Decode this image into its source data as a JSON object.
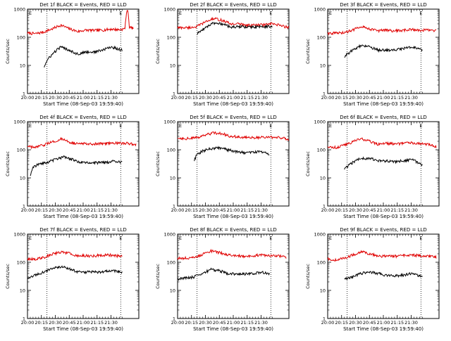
{
  "chart_data": [
    {
      "type": "line",
      "title": "Det 1f BLACK = Events, RED = LLD",
      "ylabel": "Counts/sec",
      "xlabel": "Start Time (08-Sep-03 19:59:40)",
      "x_ticks": [
        "20:00",
        "20:15",
        "20:30",
        "20:45",
        "21:00",
        "21:15",
        "21:30"
      ],
      "y_ticks": [
        "1",
        "10",
        "100",
        "1000"
      ],
      "ylim": [
        1,
        1000
      ],
      "xlim_min": [
        0,
        40
      ],
      "markers": [
        {
          "label": "E",
          "x_min": 0.5
        },
        {
          "label": "E",
          "x_min": 33
        }
      ],
      "dotted_x_min": [
        7,
        33.5
      ],
      "series": [
        {
          "name": "LLD",
          "color": "#e00000",
          "x_min": [
            0,
            3,
            6,
            9,
            12,
            15,
            18,
            21,
            24,
            27,
            30,
            33,
            35,
            36,
            36.5,
            37,
            38
          ],
          "values": [
            140,
            135,
            155,
            200,
            270,
            200,
            160,
            180,
            175,
            180,
            195,
            185,
            200,
            1000,
            240,
            220,
            210
          ]
        },
        {
          "name": "Events",
          "color": "#000000",
          "x_min": [
            6,
            9,
            12,
            15,
            18,
            21,
            24,
            27,
            30,
            34
          ],
          "values": [
            9,
            25,
            45,
            35,
            25,
            30,
            30,
            35,
            45,
            35
          ]
        }
      ]
    },
    {
      "type": "line",
      "title": "Det 2f BLACK = Events, RED = LLD",
      "ylabel": "Counts/sec",
      "xlabel": "Start Time (08-Sep-03 19:59:40)",
      "x_ticks": [
        "20:00",
        "20:15",
        "20:30",
        "20:45",
        "21:00",
        "21:15",
        "21:30"
      ],
      "y_ticks": [
        "1",
        "10",
        "100",
        "1000"
      ],
      "ylim": [
        1,
        1000
      ],
      "xlim_min": [
        0,
        40
      ],
      "markers": [
        {
          "label": "E",
          "x_min": 0.5
        },
        {
          "label": "E",
          "x_min": 33
        }
      ],
      "dotted_x_min": [
        7,
        33.5
      ],
      "series": [
        {
          "name": "LLD",
          "color": "#e00000",
          "x_min": [
            0,
            4,
            7,
            10,
            13,
            16,
            19,
            22,
            25,
            28,
            31,
            34,
            37,
            40
          ],
          "values": [
            220,
            220,
            240,
            350,
            460,
            400,
            300,
            300,
            270,
            270,
            280,
            300,
            260,
            220
          ]
        },
        {
          "name": "Events",
          "color": "#000000",
          "x_min": [
            7,
            10,
            13,
            16,
            19,
            22,
            25,
            28,
            31,
            34
          ],
          "values": [
            130,
            220,
            320,
            300,
            230,
            240,
            230,
            230,
            240,
            240
          ]
        }
      ]
    },
    {
      "type": "line",
      "title": "Det 3f BLACK = Events, RED = LLD",
      "ylabel": "Counts/sec",
      "xlabel": "Start Time (08-Sep-03 19:59:40)",
      "x_ticks": [
        "20:00",
        "20:15",
        "20:30",
        "20:45",
        "21:00",
        "21:15",
        "21:30"
      ],
      "y_ticks": [
        "1",
        "10",
        "100",
        "1000"
      ],
      "ylim": [
        1,
        1000
      ],
      "xlim_min": [
        0,
        40
      ],
      "markers": [
        {
          "label": "E",
          "x_min": 0.5
        },
        {
          "label": "E",
          "x_min": 33
        }
      ],
      "dotted_x_min": [
        7,
        33.5
      ],
      "series": [
        {
          "name": "LLD",
          "color": "#e00000",
          "x_min": [
            0,
            3,
            6,
            9,
            12,
            15,
            18,
            21,
            24,
            27,
            30,
            33,
            36,
            39
          ],
          "values": [
            140,
            140,
            145,
            180,
            250,
            200,
            170,
            180,
            170,
            175,
            190,
            180,
            180,
            170
          ]
        },
        {
          "name": "Events",
          "color": "#000000",
          "x_min": [
            6,
            9,
            12,
            15,
            18,
            21,
            24,
            27,
            30,
            34
          ],
          "values": [
            20,
            35,
            50,
            45,
            35,
            35,
            35,
            40,
            45,
            35
          ]
        }
      ]
    },
    {
      "type": "line",
      "title": "Det 4f BLACK = Events, RED = LLD",
      "ylabel": "Counts/sec",
      "xlabel": "Start Time (08-Sep-03 19:59:40)",
      "x_ticks": [
        "20:00",
        "20:15",
        "20:30",
        "20:45",
        "21:00",
        "21:15",
        "21:30"
      ],
      "y_ticks": [
        "1",
        "10",
        "100",
        "1000"
      ],
      "ylim": [
        1,
        1000
      ],
      "xlim_min": [
        0,
        40
      ],
      "markers": [
        {
          "label": "E",
          "x_min": 0.5
        },
        {
          "label": "E",
          "x_min": 33
        }
      ],
      "dotted_x_min": [
        7,
        33.5
      ],
      "series": [
        {
          "name": "LLD",
          "color": "#e00000",
          "x_min": [
            0,
            3,
            6,
            9,
            12,
            15,
            18,
            21,
            24,
            27,
            30,
            33,
            36,
            39
          ],
          "values": [
            130,
            120,
            150,
            190,
            240,
            190,
            160,
            170,
            160,
            165,
            180,
            170,
            170,
            150
          ]
        },
        {
          "name": "Events",
          "color": "#000000",
          "x_min": [
            1,
            2,
            4,
            7,
            10,
            13,
            16,
            19,
            22,
            25,
            28,
            31,
            34
          ],
          "values": [
            12,
            25,
            30,
            35,
            45,
            55,
            45,
            35,
            35,
            35,
            35,
            40,
            35
          ]
        }
      ]
    },
    {
      "type": "line",
      "title": "Det 5f BLACK = Events, RED = LLD",
      "ylabel": "Counts/sec",
      "xlabel": "Start Time (08-Sep-03 19:59:40)",
      "x_ticks": [
        "20:00",
        "20:15",
        "20:30",
        "20:45",
        "21:00",
        "21:15",
        "21:30"
      ],
      "y_ticks": [
        "1",
        "10",
        "100",
        "1000"
      ],
      "ylim": [
        1,
        1000
      ],
      "xlim_min": [
        0,
        40
      ],
      "markers": [
        {
          "label": "E",
          "x_min": 0.5
        },
        {
          "label": "E",
          "x_min": 33
        }
      ],
      "dotted_x_min": [
        7,
        33.5
      ],
      "series": [
        {
          "name": "LLD",
          "color": "#e00000",
          "x_min": [
            0,
            4,
            7,
            10,
            13,
            16,
            19,
            22,
            25,
            28,
            31,
            34,
            37,
            40
          ],
          "values": [
            260,
            250,
            270,
            330,
            400,
            370,
            300,
            290,
            270,
            270,
            280,
            280,
            270,
            240
          ]
        },
        {
          "name": "Events",
          "color": "#000000",
          "x_min": [
            6,
            7,
            9,
            12,
            15,
            18,
            21,
            24,
            27,
            30,
            33
          ],
          "values": [
            40,
            70,
            90,
            110,
            120,
            100,
            85,
            80,
            80,
            85,
            70
          ]
        }
      ]
    },
    {
      "type": "line",
      "title": "Det 6f BLACK = Events, RED = LLD",
      "ylabel": "Counts/sec",
      "xlabel": "Start Time (08-Sep-03 19:59:40)",
      "x_ticks": [
        "20:00",
        "20:15",
        "20:30",
        "20:45",
        "21:00",
        "21:15",
        "21:30"
      ],
      "y_ticks": [
        "1",
        "10",
        "100",
        "1000"
      ],
      "ylim": [
        1,
        1000
      ],
      "xlim_min": [
        0,
        40
      ],
      "markers": [
        {
          "label": "E",
          "x_min": 0.5
        },
        {
          "label": "E",
          "x_min": 33
        }
      ],
      "dotted_x_min": [
        7,
        33.5
      ],
      "series": [
        {
          "name": "LLD",
          "color": "#e00000",
          "x_min": [
            0,
            3,
            6,
            9,
            12,
            15,
            18,
            21,
            24,
            27,
            30,
            33,
            36,
            39
          ],
          "values": [
            130,
            120,
            150,
            190,
            250,
            200,
            160,
            170,
            160,
            170,
            180,
            170,
            160,
            130
          ]
        },
        {
          "name": "Events",
          "color": "#000000",
          "x_min": [
            6,
            9,
            12,
            15,
            18,
            21,
            24,
            27,
            30,
            34
          ],
          "values": [
            20,
            35,
            50,
            50,
            40,
            40,
            38,
            40,
            45,
            30
          ]
        }
      ]
    },
    {
      "type": "line",
      "title": "Det 7f BLACK = Events, RED = LLD",
      "ylabel": "Counts/sec",
      "xlabel": "Start Time (08-Sep-03 19:59:40)",
      "x_ticks": [
        "20:00",
        "20:15",
        "20:30",
        "20:45",
        "21:00",
        "21:15",
        "21:30"
      ],
      "y_ticks": [
        "1",
        "10",
        "100",
        "1000"
      ],
      "ylim": [
        1,
        1000
      ],
      "xlim_min": [
        0,
        40
      ],
      "markers": [
        {
          "label": "E",
          "x_min": 0.5
        },
        {
          "label": "E",
          "x_min": 33
        }
      ],
      "dotted_x_min": [
        7,
        33.5
      ],
      "series": [
        {
          "name": "LLD",
          "color": "#e00000",
          "x_min": [
            0,
            3,
            6,
            9,
            12,
            15,
            18,
            21,
            24,
            27,
            30,
            34
          ],
          "values": [
            130,
            130,
            150,
            200,
            230,
            210,
            170,
            170,
            170,
            180,
            180,
            160
          ]
        },
        {
          "name": "Events",
          "color": "#000000",
          "x_min": [
            0,
            1,
            3,
            6,
            9,
            12,
            15,
            18,
            21,
            24,
            27,
            30,
            34
          ],
          "values": [
            25,
            30,
            35,
            45,
            60,
            70,
            60,
            45,
            45,
            45,
            45,
            50,
            45
          ]
        }
      ]
    },
    {
      "type": "line",
      "title": "Det 8f BLACK = Events, RED = LLD",
      "ylabel": "Counts/sec",
      "xlabel": "Start Time (08-Sep-03 19:59:40)",
      "x_ticks": [
        "20:00",
        "20:15",
        "20:30",
        "20:45",
        "21:00",
        "21:15",
        "21:30"
      ],
      "y_ticks": [
        "1",
        "10",
        "100",
        "1000"
      ],
      "ylim": [
        1,
        1000
      ],
      "xlim_min": [
        0,
        40
      ],
      "markers": [
        {
          "label": "E",
          "x_min": 0.5
        },
        {
          "label": "E",
          "x_min": 33
        }
      ],
      "dotted_x_min": [
        7,
        33.5
      ],
      "series": [
        {
          "name": "LLD",
          "color": "#e00000",
          "x_min": [
            0,
            3,
            6,
            9,
            12,
            15,
            18,
            21,
            24,
            27,
            30,
            33,
            36,
            39
          ],
          "values": [
            140,
            140,
            150,
            190,
            250,
            220,
            180,
            175,
            165,
            170,
            180,
            170,
            170,
            150
          ]
        },
        {
          "name": "Events",
          "color": "#000000",
          "x_min": [
            0,
            3,
            6,
            9,
            12,
            15,
            18,
            21,
            24,
            27,
            30,
            33
          ],
          "values": [
            25,
            28,
            30,
            40,
            55,
            50,
            40,
            38,
            38,
            40,
            45,
            40
          ]
        }
      ]
    },
    {
      "type": "line",
      "title": "Det 9f BLACK = Events, RED = LLD",
      "ylabel": "Counts/sec",
      "xlabel": "Start Time (08-Sep-03 19:59:40)",
      "x_ticks": [
        "20:00",
        "20:15",
        "20:30",
        "20:45",
        "21:00",
        "21:15",
        "21:30"
      ],
      "y_ticks": [
        "1",
        "10",
        "100",
        "1000"
      ],
      "ylim": [
        1,
        1000
      ],
      "xlim_min": [
        0,
        40
      ],
      "markers": [
        {
          "label": "E",
          "x_min": 0.5
        },
        {
          "label": "E",
          "x_min": 33
        }
      ],
      "dotted_x_min": [
        7,
        33.5
      ],
      "series": [
        {
          "name": "LLD",
          "color": "#e00000",
          "x_min": [
            0,
            3,
            6,
            9,
            12,
            15,
            18,
            21,
            24,
            27,
            30,
            33,
            36,
            39
          ],
          "values": [
            130,
            120,
            140,
            180,
            240,
            200,
            165,
            165,
            165,
            170,
            180,
            175,
            170,
            150
          ]
        },
        {
          "name": "Events",
          "color": "#000000",
          "x_min": [
            6,
            9,
            12,
            15,
            18,
            21,
            24,
            27,
            30,
            34
          ],
          "values": [
            25,
            30,
            40,
            45,
            40,
            35,
            33,
            35,
            40,
            30
          ]
        }
      ]
    }
  ]
}
